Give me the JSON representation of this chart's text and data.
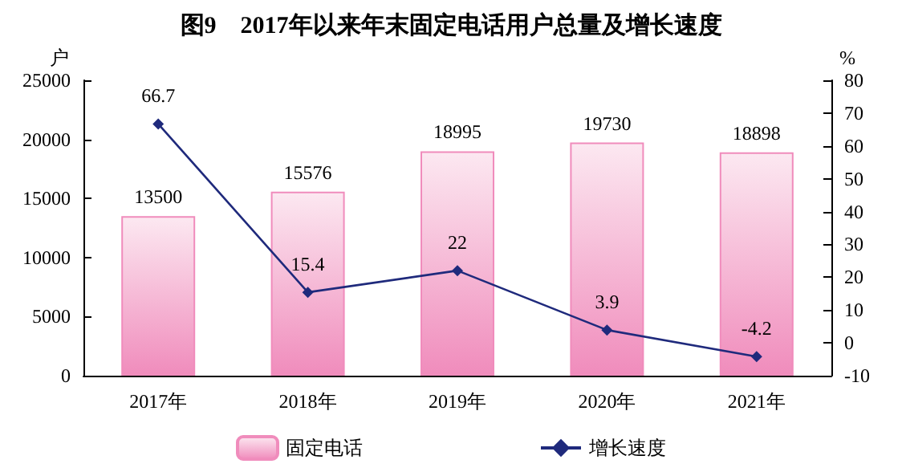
{
  "chart_data": {
    "type": "bar",
    "title": "图9　2017年以来年末固定电话用户总量及增长速度",
    "ylabel": "户",
    "y2label": "%",
    "categories": [
      "2017年",
      "2018年",
      "2019年",
      "2020年",
      "2021年"
    ],
    "series": [
      {
        "name": "固定电话",
        "color": "#f08cbc",
        "values": [
          13500,
          15576,
          18995,
          19730,
          18898
        ]
      },
      {
        "name": "增长速度",
        "type": "line",
        "axis": "y2",
        "color": "#1f2a7c",
        "values": [
          66.7,
          15.4,
          22,
          3.9,
          -4.2
        ]
      }
    ],
    "ylim": [
      0,
      25000
    ],
    "yticks": [
      0,
      5000,
      10000,
      15000,
      20000,
      25000
    ],
    "y2lim": [
      -10,
      80
    ],
    "y2ticks": [
      -10,
      0,
      10,
      20,
      30,
      40,
      50,
      60,
      70,
      80
    ],
    "data_labels": true,
    "legend": "bottom",
    "marker": "diamond",
    "grid": false
  }
}
